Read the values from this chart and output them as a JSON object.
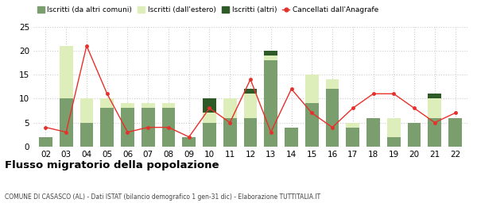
{
  "years": [
    "02",
    "03",
    "04",
    "05",
    "06",
    "07",
    "08",
    "09",
    "10",
    "11",
    "12",
    "13",
    "14",
    "15",
    "16",
    "17",
    "18",
    "19",
    "20",
    "21",
    "22"
  ],
  "iscritti_altri_comuni": [
    2,
    10,
    5,
    8,
    8,
    8,
    8,
    2,
    5,
    6,
    6,
    18,
    4,
    9,
    12,
    4,
    6,
    2,
    5,
    6,
    6
  ],
  "iscritti_estero": [
    0,
    11,
    5,
    2,
    1,
    1,
    1,
    0,
    2,
    4,
    5,
    1,
    0,
    6,
    2,
    1,
    0,
    4,
    0,
    4,
    0
  ],
  "iscritti_altri": [
    0,
    0,
    0,
    0,
    0,
    0,
    0,
    0,
    3,
    0,
    1,
    1,
    0,
    0,
    0,
    0,
    0,
    0,
    0,
    1,
    0
  ],
  "cancellati": [
    4,
    3,
    21,
    11,
    3,
    4,
    4,
    2,
    8,
    5,
    14,
    3,
    12,
    7,
    4,
    8,
    11,
    11,
    8,
    5,
    7
  ],
  "color_altri_comuni": "#7a9e6e",
  "color_estero": "#ddeebb",
  "color_altri": "#2d5a27",
  "color_cancellati": "#e8302a",
  "title": "Flusso migratorio della popolazione",
  "subtitle": "COMUNE DI CASASCO (AL) - Dati ISTAT (bilancio demografico 1 gen-31 dic) - Elaborazione TUTTITALIA.IT",
  "legend_labels": [
    "Iscritti (da altri comuni)",
    "Iscritti (dall'estero)",
    "Iscritti (altri)",
    "Cancellati dall'Anagrafe"
  ],
  "ylim": [
    0,
    25
  ],
  "yticks": [
    0,
    5,
    10,
    15,
    20,
    25
  ],
  "bg_color": "#ffffff",
  "grid_color": "#cccccc"
}
